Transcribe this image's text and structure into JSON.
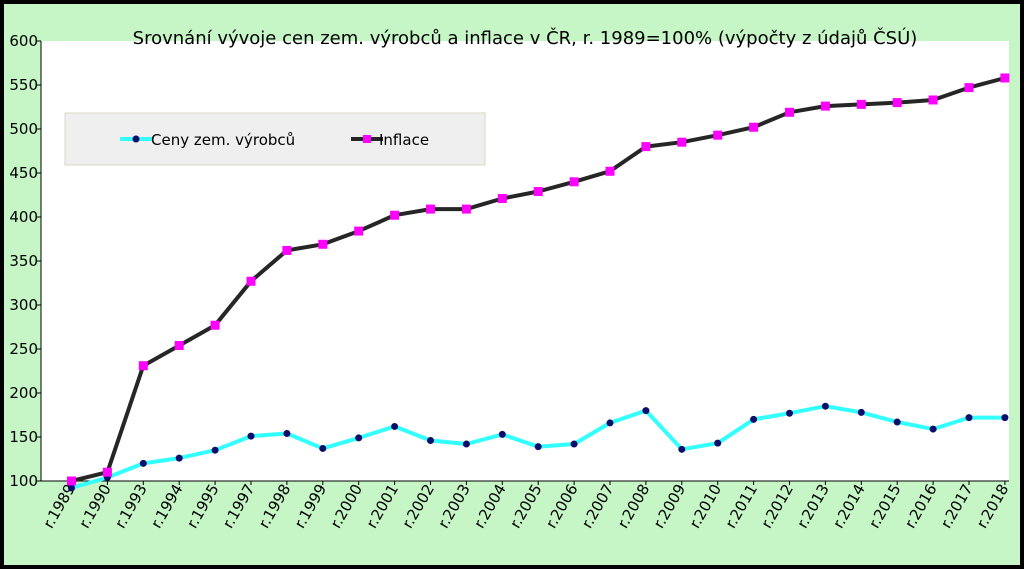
{
  "colors": {
    "frame": "#000000",
    "background": "#c6f5c6",
    "plot_area": "#ffffff",
    "legend_bg": "#efefef",
    "inflace_line": "#262626",
    "inflace_marker": "#ff00ff",
    "ceny_line": "#33ffff",
    "ceny_marker": "#0d0d6b"
  },
  "chart_data": {
    "type": "line",
    "title": "Srovnání vývoje cen zem. výrobců a inflace v ČR, r. 1989=100% (výpočty z údajů ČSÚ)",
    "xlabel": "",
    "ylabel": "",
    "ylim": [
      100,
      600
    ],
    "yticks": [
      100,
      150,
      200,
      250,
      300,
      350,
      400,
      450,
      500,
      550,
      600
    ],
    "grid": false,
    "legend_position": "top-left",
    "categories": [
      "r.1989",
      "r.1990",
      "r.1993",
      "r.1994",
      "r.1995",
      "r.1997",
      "r.1998",
      "r.1999",
      "r.2000",
      "r.2001",
      "r.2002",
      "r.2003",
      "r.2004",
      "r.2005",
      "r.2006",
      "r.2007",
      "r.2008",
      "r.2009",
      "r.2010",
      "r.2011",
      "r.2012",
      "r.2013",
      "r.2014",
      "r.2015",
      "r.2016",
      "r.2017",
      "r.2018"
    ],
    "series": [
      {
        "name": "Ceny zem. výrobců",
        "values": [
          92,
          104,
          120,
          126,
          135,
          151,
          154,
          137,
          149,
          162,
          146,
          142,
          153,
          139,
          142,
          166,
          180,
          136,
          143,
          170,
          177,
          185,
          178,
          167,
          159,
          172,
          172
        ]
      },
      {
        "name": "Inflace",
        "values": [
          100,
          110,
          231,
          254,
          277,
          327,
          362,
          369,
          384,
          402,
          409,
          409,
          421,
          429,
          440,
          452,
          480,
          485,
          493,
          502,
          519,
          526,
          528,
          530,
          533,
          547,
          558
        ]
      }
    ]
  }
}
